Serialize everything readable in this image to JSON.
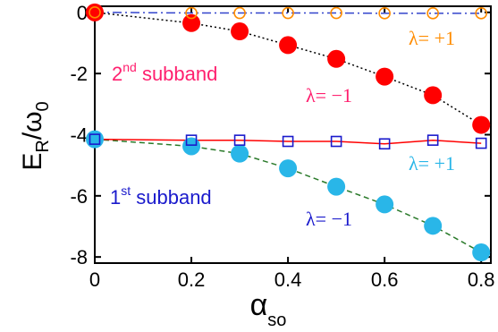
{
  "chart_data": {
    "type": "scatter",
    "xlabel": "α",
    "xlabel_sub": "so",
    "ylabel_main": "E",
    "ylabel_sub1": "R",
    "ylabel_sep": "/ω",
    "ylabel_sub2": "0",
    "xlim": [
      0,
      0.82
    ],
    "ylim": [
      -8.2,
      0.2
    ],
    "xticks": [
      0,
      0.2,
      0.4,
      0.6,
      0.8
    ],
    "xtick_labels": [
      "0",
      "0.2",
      "0.4",
      "0.6",
      "0.8"
    ],
    "yticks": [
      0,
      -2,
      -4,
      -6,
      -8
    ],
    "ytick_labels": [
      "0",
      "-2",
      "-4",
      "-6",
      "-8"
    ],
    "series": [
      {
        "color": "#ff0000",
        "marker": "filled-circle",
        "fit": {
          "color": "#000000",
          "style": "dotted"
        },
        "x": [
          0,
          0.2,
          0.3,
          0.4,
          0.5,
          0.6,
          0.7,
          0.8
        ],
        "y": [
          0,
          -0.35,
          -0.62,
          -1.07,
          -1.52,
          -2.1,
          -2.71,
          -3.68
        ]
      },
      {
        "color": "#ff8c00",
        "marker": "open-circle",
        "fit": {
          "color": "#3344cc",
          "style": "dashdot"
        },
        "x": [
          0,
          0.2,
          0.3,
          0.4,
          0.5,
          0.6,
          0.7,
          0.8
        ],
        "y": [
          0,
          -0.02,
          -0.02,
          -0.02,
          -0.02,
          -0.03,
          -0.03,
          -0.03
        ]
      },
      {
        "color": "#29b6e8",
        "marker": "filled-circle",
        "fit": {
          "color": "#2a7a2a",
          "style": "dashed"
        },
        "x": [
          0,
          0.2,
          0.3,
          0.4,
          0.5,
          0.6,
          0.7,
          0.8
        ],
        "y": [
          -4.15,
          -4.38,
          -4.62,
          -5.1,
          -5.7,
          -6.28,
          -6.98,
          -7.85
        ]
      },
      {
        "color": "#1a1acc",
        "marker": "open-square",
        "fit": {
          "color": "#ff0000",
          "style": "solid"
        },
        "x": [
          0,
          0.2,
          0.3,
          0.4,
          0.5,
          0.6,
          0.7,
          0.8
        ],
        "y": [
          -4.15,
          -4.18,
          -4.18,
          -4.22,
          -4.22,
          -4.3,
          -4.18,
          -4.28
        ]
      }
    ],
    "annotations": [
      {
        "id": "lam-up-2",
        "text": "λ= +1",
        "color": "#ff8c00"
      },
      {
        "id": "sub-2",
        "text": "2",
        "sup": "nd",
        "tail": " subband",
        "color": "#ff1f6e"
      },
      {
        "id": "lam-dn-2",
        "text": "λ= −1",
        "color": "#ff1f6e"
      },
      {
        "id": "lam-up-1",
        "text": "λ= +1",
        "color": "#29b6e8"
      },
      {
        "id": "sub-1",
        "text": "1",
        "sup": "st",
        "tail": " subband",
        "color": "#1a1acc"
      },
      {
        "id": "lam-dn-1",
        "text": "λ= −1",
        "color": "#1a1acc"
      }
    ]
  }
}
